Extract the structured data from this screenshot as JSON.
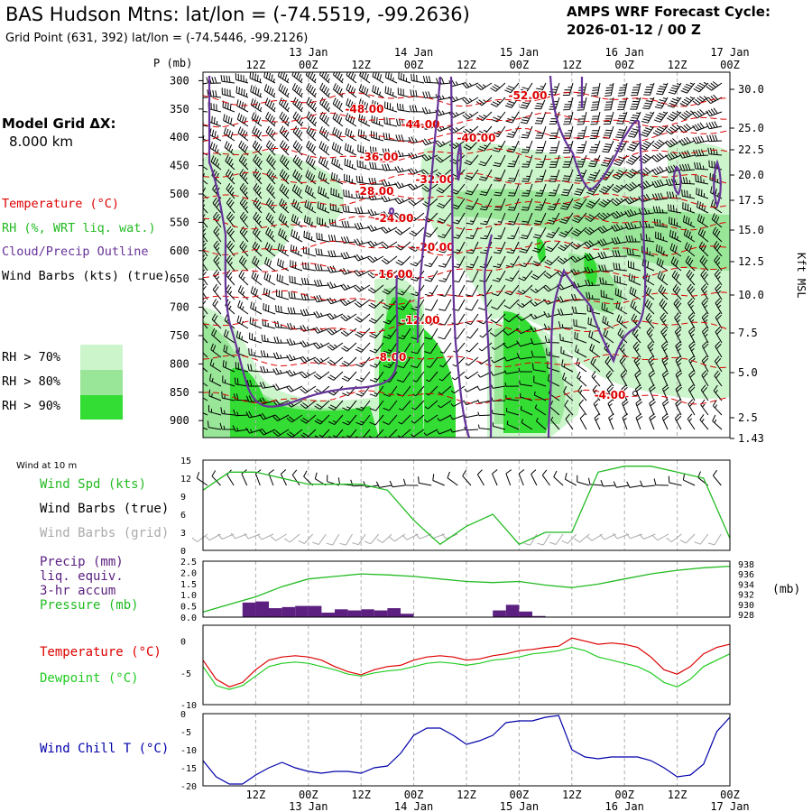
{
  "header": {
    "title": "BAS Hudson Mtns:  lat/lon = (-74.5519, -99.2636)",
    "subtitle": "Grid Point (631, 392) lat/lon = (-74.5446, -99.2126)",
    "cycle_label": "AMPS WRF Forecast Cycle:",
    "cycle_value": "2026-01-12 / 00  Z"
  },
  "left_panel": {
    "grid_label": "Model Grid ΔX:",
    "grid_value": "8.000 km",
    "legend_temperature": "Temperature (°C)",
    "legend_rh": "RH (%, WRT liq. wat.)",
    "legend_cloud": "Cloud/Precip Outline",
    "legend_wind": "Wind Barbs (kts) (true)",
    "rh_bins": [
      "RH > 70%",
      "RH > 80%",
      "RH > 90%"
    ]
  },
  "colors": {
    "rh70": "#ccf5cc",
    "rh80": "#99e699",
    "rh90": "#33dd33",
    "temperature_contour": "#dd0000",
    "cloud_outline": "#663399",
    "wind_speed": "#22bb22",
    "pressure": "#22bb22",
    "precip": "#5c2080",
    "temperature": "#dd0000",
    "dewpoint": "#22cc22",
    "wind_chill": "#0000aa",
    "barbs_grid": "#aaaaaa"
  },
  "time_axis": {
    "hour_labels": [
      "12Z",
      "00Z",
      "12Z",
      "00Z",
      "12Z",
      "00Z",
      "12Z",
      "00Z",
      "12Z",
      "00Z"
    ],
    "date_labels": [
      "13 Jan",
      "14 Jan",
      "15 Jan",
      "16 Jan",
      "17 Jan"
    ]
  },
  "chart_data": [
    {
      "type": "heatmap",
      "panel": "cross-section",
      "ylabel_left": "P (mb)",
      "ylabel_right": "Kft MSL",
      "pressure_ticks": [
        300,
        350,
        400,
        450,
        500,
        550,
        600,
        650,
        700,
        750,
        800,
        850,
        900
      ],
      "height_ticks": [
        "30.0",
        "25.0",
        "22.5",
        "20.0",
        "17.5",
        "15.0",
        "12.5",
        "10.0",
        "7.5",
        "5.0",
        "2.5",
        "1.43"
      ],
      "temperature_contour_labels": [
        "-52.00",
        "-48.00",
        "-44.00",
        "-40.00",
        "-36.00",
        "-32.00",
        "-28.00",
        "-24.00",
        "-20.00",
        "-16.00",
        "-12.00",
        "-8.00",
        "-4.00"
      ]
    },
    {
      "type": "line",
      "panel": "surface-wind",
      "title": "Wind at 10 m",
      "legend": [
        "Wind Spd (kts)",
        "Wind Barbs (true)",
        "Wind Barbs (grid)"
      ],
      "ylim": [
        0,
        15
      ],
      "y_ticks": [
        "15",
        "12",
        "9",
        "6",
        "3",
        "0"
      ],
      "x": [
        0,
        6,
        12,
        18,
        24,
        30,
        36,
        42,
        48,
        54,
        60,
        66,
        72,
        78,
        84,
        90,
        96,
        102,
        108,
        114,
        120
      ],
      "series": [
        {
          "name": "Wind Spd (kts)",
          "values": [
            10,
            13,
            13,
            12,
            11,
            11,
            11,
            10,
            5,
            1,
            4,
            6,
            1,
            3,
            3,
            13,
            14,
            14,
            13,
            12,
            2
          ]
        }
      ]
    },
    {
      "type": "bar",
      "panel": "precip-pressure",
      "legend": [
        "Precip (mm)",
        "liq. equiv.",
        "3-hr accum",
        "Pressure (mb)"
      ],
      "ylim": [
        0,
        2.5
      ],
      "y_ticks": [
        "2.5",
        "2.0",
        "1.5",
        "1.0",
        "0.5",
        "0.0"
      ],
      "y2_ticks": [
        "938",
        "936",
        "934",
        "932",
        "930",
        "928"
      ],
      "y2_unit": "(mb)",
      "precip_bins": [
        {
          "start": 9,
          "end": 12,
          "value": 0.65
        },
        {
          "start": 12,
          "end": 15,
          "value": 0.7
        },
        {
          "start": 15,
          "end": 18,
          "value": 0.4
        },
        {
          "start": 18,
          "end": 21,
          "value": 0.45
        },
        {
          "start": 21,
          "end": 24,
          "value": 0.5
        },
        {
          "start": 24,
          "end": 27,
          "value": 0.5
        },
        {
          "start": 27,
          "end": 30,
          "value": 0.2
        },
        {
          "start": 30,
          "end": 33,
          "value": 0.35
        },
        {
          "start": 33,
          "end": 36,
          "value": 0.3
        },
        {
          "start": 36,
          "end": 39,
          "value": 0.35
        },
        {
          "start": 39,
          "end": 42,
          "value": 0.3
        },
        {
          "start": 42,
          "end": 45,
          "value": 0.4
        },
        {
          "start": 45,
          "end": 48,
          "value": 0.15
        },
        {
          "start": 66,
          "end": 69,
          "value": 0.3
        },
        {
          "start": 69,
          "end": 72,
          "value": 0.55
        },
        {
          "start": 72,
          "end": 75,
          "value": 0.25
        },
        {
          "start": 75,
          "end": 78,
          "value": 0.05
        }
      ],
      "pressure_x": [
        0,
        6,
        12,
        18,
        24,
        30,
        36,
        42,
        48,
        54,
        60,
        66,
        72,
        78,
        84,
        90,
        96,
        102,
        108,
        114,
        120
      ],
      "pressure_values": [
        928.5,
        930,
        931.5,
        933.5,
        935,
        935.5,
        936,
        935.8,
        935.5,
        935,
        934.5,
        934.3,
        934.5,
        933.8,
        933.3,
        934,
        935,
        936,
        936.7,
        937.2,
        937.5
      ]
    },
    {
      "type": "line",
      "panel": "temperature-dewpoint",
      "legend": [
        "Temperature (°C)",
        "Dewpoint (°C)"
      ],
      "ylim": [
        -10,
        2.5
      ],
      "y_ticks": [
        "0",
        "-5",
        "-10"
      ],
      "x": [
        0,
        3,
        6,
        9,
        12,
        15,
        18,
        21,
        24,
        27,
        30,
        33,
        36,
        39,
        42,
        45,
        48,
        51,
        54,
        57,
        60,
        63,
        66,
        69,
        72,
        75,
        78,
        81,
        84,
        87,
        90,
        93,
        96,
        99,
        102,
        105,
        108,
        111,
        114,
        117,
        120
      ],
      "series": [
        {
          "name": "Temperature (°C)",
          "values": [
            -3,
            -6,
            -7.2,
            -6.5,
            -4.5,
            -3,
            -2.5,
            -2.3,
            -2.5,
            -3,
            -4,
            -4.8,
            -5.3,
            -4.5,
            -4,
            -3.8,
            -3,
            -2.5,
            -2.3,
            -2.5,
            -3,
            -2.8,
            -2.3,
            -2,
            -1.5,
            -1.3,
            -1,
            -0.8,
            0.5,
            0,
            -0.5,
            -0.3,
            -0.5,
            -1,
            -2.5,
            -4.5,
            -5.2,
            -4,
            -2,
            -1,
            -0.5
          ]
        },
        {
          "name": "Dewpoint (°C)",
          "values": [
            -4,
            -7,
            -7.6,
            -7,
            -5.5,
            -4,
            -3.5,
            -3.3,
            -3.5,
            -4,
            -4.5,
            -5.2,
            -5.5,
            -5,
            -4.7,
            -4.5,
            -4,
            -3.5,
            -3.3,
            -3.5,
            -3.8,
            -3.5,
            -3,
            -2.8,
            -2.5,
            -2,
            -1.8,
            -1.5,
            -1,
            -1.5,
            -2.5,
            -3,
            -3.5,
            -4,
            -5,
            -6.5,
            -7.2,
            -6,
            -4,
            -3,
            -2
          ]
        }
      ]
    },
    {
      "type": "line",
      "panel": "wind-chill",
      "legend": [
        "Wind Chill T (°C)"
      ],
      "ylim": [
        -20,
        0
      ],
      "y_ticks": [
        "0",
        "-5",
        "-10",
        "-15",
        "-20"
      ],
      "x": [
        0,
        3,
        6,
        9,
        12,
        15,
        18,
        21,
        24,
        27,
        30,
        33,
        36,
        39,
        42,
        45,
        48,
        51,
        54,
        57,
        60,
        63,
        66,
        69,
        72,
        75,
        78,
        81,
        84,
        87,
        90,
        93,
        96,
        99,
        102,
        105,
        108,
        111,
        114,
        117,
        120
      ],
      "series": [
        {
          "name": "Wind Chill T (°C)",
          "values": [
            -13,
            -17.5,
            -19.5,
            -19.5,
            -17,
            -15,
            -13.5,
            -15,
            -16,
            -16.5,
            -16,
            -16,
            -16.5,
            -15,
            -14.5,
            -11,
            -6,
            -4,
            -4,
            -6,
            -8.5,
            -7.5,
            -6,
            -2.5,
            -2,
            -2,
            -1,
            -0.5,
            -10,
            -12,
            -12.5,
            -12,
            -12,
            -12,
            -13,
            -15,
            -17.5,
            -17,
            -14,
            -5,
            -1
          ]
        }
      ]
    }
  ]
}
